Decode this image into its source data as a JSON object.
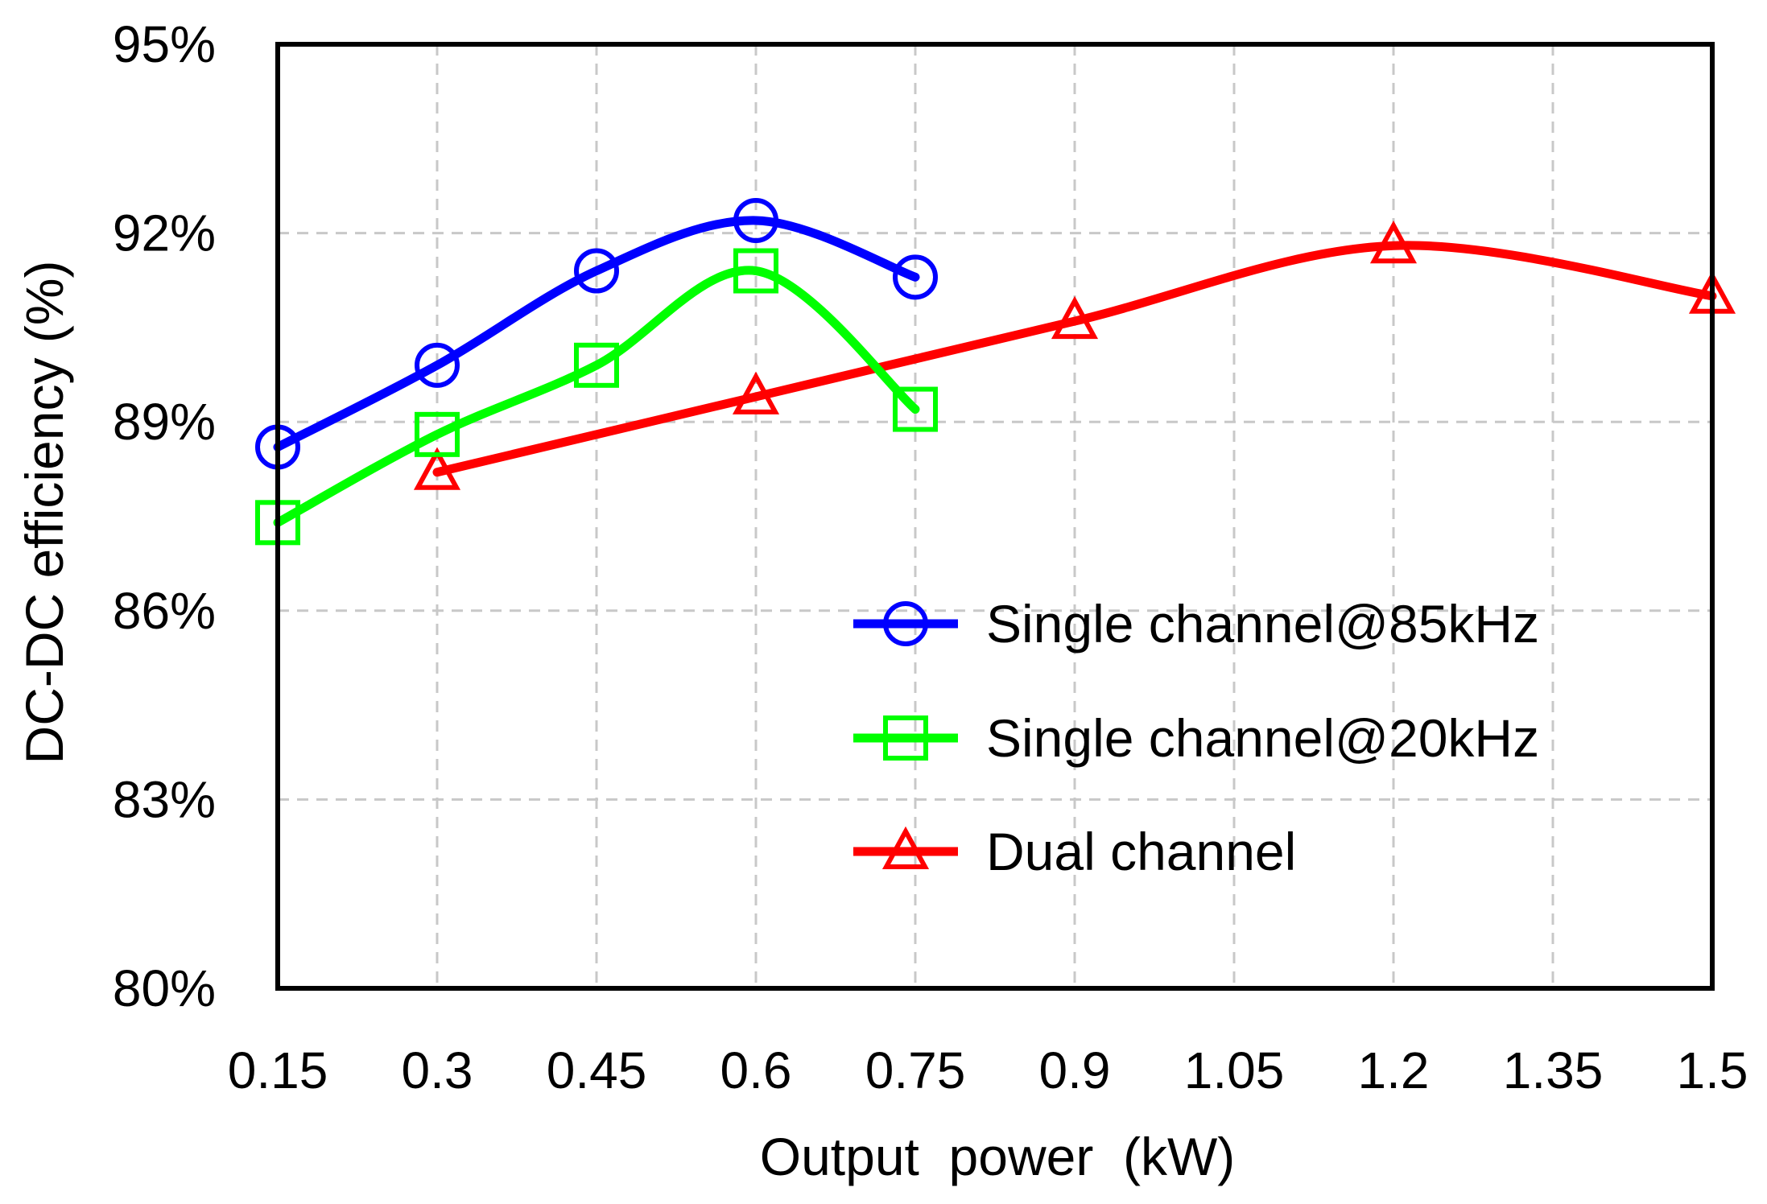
{
  "chart_data": {
    "type": "line",
    "xlabel": "Output  power  (kW)",
    "ylabel": "DC-DC efficiency (%)",
    "xlim": [
      0.15,
      1.5
    ],
    "ylim": [
      80,
      95
    ],
    "x_ticks": [
      0.15,
      0.3,
      0.45,
      0.6,
      0.75,
      0.9,
      1.05,
      1.2,
      1.35,
      1.5
    ],
    "x_tick_labels": [
      "0.15",
      "0.3",
      "0.45",
      "0.6",
      "0.75",
      "0.9",
      "1.05",
      "1.2",
      "1.35",
      "1.5"
    ],
    "y_ticks": [
      80,
      83,
      86,
      89,
      92,
      95
    ],
    "y_tick_labels": [
      "80%",
      "83%",
      "86%",
      "89%",
      "92%",
      "95%"
    ],
    "grid": true,
    "legend_position": "bottom-right",
    "series": [
      {
        "name": "Single channel@85kHz",
        "color": "#0000ff",
        "marker": "circle",
        "x": [
          0.15,
          0.3,
          0.45,
          0.6,
          0.75
        ],
        "y": [
          88.6,
          89.9,
          91.4,
          92.2,
          91.3
        ]
      },
      {
        "name": "Single channel@20kHz",
        "color": "#00ff00",
        "marker": "square",
        "x": [
          0.15,
          0.3,
          0.45,
          0.6,
          0.75
        ],
        "y": [
          87.4,
          88.8,
          89.9,
          91.4,
          89.2
        ]
      },
      {
        "name": "Dual channel",
        "color": "#ff0000",
        "marker": "triangle",
        "x": [
          0.3,
          0.6,
          0.9,
          1.2,
          1.5
        ],
        "y": [
          88.2,
          89.4,
          90.6,
          91.8,
          91.0
        ]
      }
    ]
  }
}
